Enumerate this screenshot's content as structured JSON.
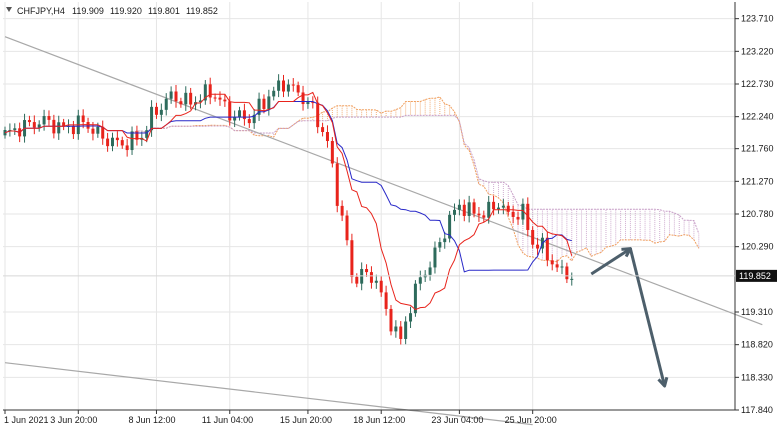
{
  "header": {
    "symbol": "CHFJPY,H4",
    "open": "119.909",
    "high": "119.920",
    "low": "119.801",
    "close": "119.852"
  },
  "chart_data": {
    "type": "candlestick",
    "y_ticks": [
      "123.710",
      "123.220",
      "122.730",
      "122.240",
      "121.760",
      "121.270",
      "120.780",
      "120.290",
      "119.310",
      "118.820",
      "118.330",
      "117.840"
    ],
    "x_ticks": [
      "1 Jun 2021",
      "3 Jun 20:00",
      "8 Jun 12:00",
      "11 Jun 04:00",
      "15 Jun 20:00",
      "18 Jun 12:00",
      "23 Jun 04:00",
      "25 Jun 20:00"
    ],
    "ylim": [
      117.84,
      123.96
    ],
    "current_price": "119.852",
    "current_price_value": 119.852,
    "grid": true,
    "colors": {
      "bull": "#2e6b5c",
      "bear": "#e8231b",
      "tenkan": "#e8231b",
      "kijun": "#2828c8",
      "cloud": "#f0a060",
      "cloud_b": "#c8a0c8",
      "channel": "#a8a8a8",
      "arrow": "#4d5f6b",
      "current_label_bg": "#111111"
    },
    "channel_lines": [
      {
        "from": [
          0,
          118.55
        ],
        "to": [
          108,
          117.62
        ]
      },
      {
        "from": [
          0,
          123.44
        ],
        "to": [
          155,
          119.12
        ]
      }
    ],
    "forecast_arrow": {
      "points": [
        [
          120,
          119.88
        ],
        [
          128,
          120.26
        ],
        [
          135,
          118.2
        ]
      ]
    }
  }
}
